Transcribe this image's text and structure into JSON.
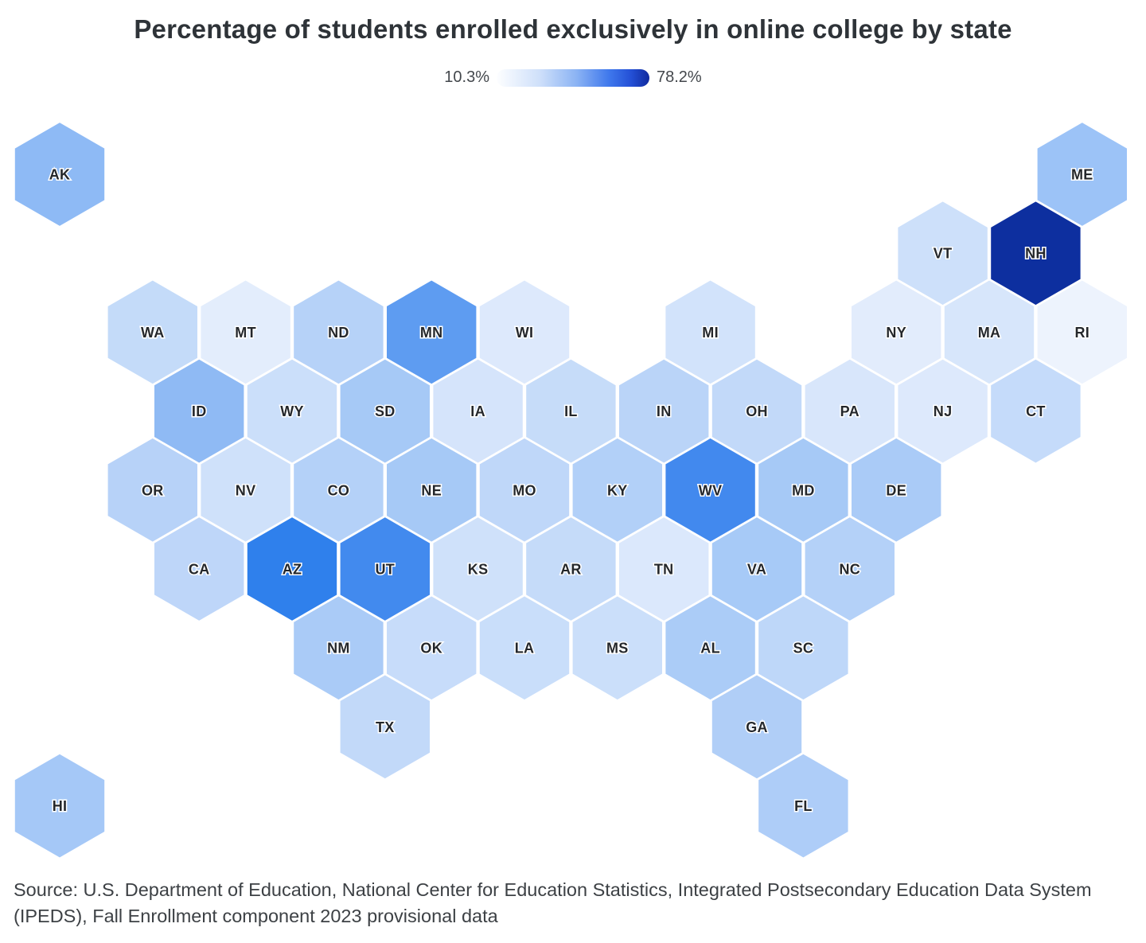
{
  "title": "Percentage of students enrolled exclusively in online college by state",
  "legend": {
    "min_label": "10.3%",
    "max_label": "78.2%"
  },
  "source": "Source: U.S. Department of Education, National Center for Education Statistics, Integrated Postsecondary Education Data System (IPEDS), Fall Enrollment component 2023 provisional data",
  "chart_data": {
    "type": "hexmap-choropleth",
    "title": "Percentage of students enrolled exclusively in online college by state",
    "legend_range": {
      "min": 10.3,
      "max": 78.2,
      "unit": "%"
    },
    "color_scale": [
      "#fdfeff",
      "#cfe0fa",
      "#8cb4f4",
      "#3e77ec",
      "#102a9e"
    ],
    "states": [
      {
        "abbr": "AK",
        "row": 0,
        "col": 0,
        "color": "#8ebaf5"
      },
      {
        "abbr": "ME",
        "row": 0,
        "col": 22,
        "color": "#9cc3f7"
      },
      {
        "abbr": "VT",
        "row": 1,
        "col": 19,
        "color": "#cde0fa"
      },
      {
        "abbr": "NH",
        "row": 1,
        "col": 21,
        "color": "#0d2f9f"
      },
      {
        "abbr": "WA",
        "row": 2,
        "col": 2,
        "color": "#c4dbf9"
      },
      {
        "abbr": "MT",
        "row": 2,
        "col": 4,
        "color": "#e3edfc"
      },
      {
        "abbr": "ND",
        "row": 2,
        "col": 6,
        "color": "#b6d2f8"
      },
      {
        "abbr": "MN",
        "row": 2,
        "col": 8,
        "color": "#5e9cf1"
      },
      {
        "abbr": "WI",
        "row": 2,
        "col": 10,
        "color": "#dde9fc"
      },
      {
        "abbr": "MI",
        "row": 2,
        "col": 14,
        "color": "#d2e3fb"
      },
      {
        "abbr": "NY",
        "row": 2,
        "col": 18,
        "color": "#e2ecfc"
      },
      {
        "abbr": "MA",
        "row": 2,
        "col": 20,
        "color": "#d7e6fb"
      },
      {
        "abbr": "RI",
        "row": 2,
        "col": 22,
        "color": "#edf3fd"
      },
      {
        "abbr": "ID",
        "row": 3,
        "col": 3,
        "color": "#8fbaf4"
      },
      {
        "abbr": "WY",
        "row": 3,
        "col": 5,
        "color": "#cbdffa"
      },
      {
        "abbr": "SD",
        "row": 3,
        "col": 7,
        "color": "#a6c9f6"
      },
      {
        "abbr": "IA",
        "row": 3,
        "col": 9,
        "color": "#d5e4fb"
      },
      {
        "abbr": "IL",
        "row": 3,
        "col": 11,
        "color": "#c6dcf9"
      },
      {
        "abbr": "IN",
        "row": 3,
        "col": 13,
        "color": "#bad4f8"
      },
      {
        "abbr": "OH",
        "row": 3,
        "col": 15,
        "color": "#c2d9f9"
      },
      {
        "abbr": "PA",
        "row": 3,
        "col": 17,
        "color": "#d8e6fb"
      },
      {
        "abbr": "NJ",
        "row": 3,
        "col": 19,
        "color": "#dde9fc"
      },
      {
        "abbr": "CT",
        "row": 3,
        "col": 21,
        "color": "#c5dbfa"
      },
      {
        "abbr": "OR",
        "row": 4,
        "col": 2,
        "color": "#b7d2f8"
      },
      {
        "abbr": "NV",
        "row": 4,
        "col": 4,
        "color": "#cfe1fa"
      },
      {
        "abbr": "CO",
        "row": 4,
        "col": 6,
        "color": "#b4d1f8"
      },
      {
        "abbr": "NE",
        "row": 4,
        "col": 8,
        "color": "#a6c9f6"
      },
      {
        "abbr": "MO",
        "row": 4,
        "col": 10,
        "color": "#bfd7f9"
      },
      {
        "abbr": "KY",
        "row": 4,
        "col": 12,
        "color": "#b2d0f8"
      },
      {
        "abbr": "WV",
        "row": 4,
        "col": 14,
        "color": "#4289ee"
      },
      {
        "abbr": "MD",
        "row": 4,
        "col": 16,
        "color": "#a6c9f6"
      },
      {
        "abbr": "DE",
        "row": 4,
        "col": 18,
        "color": "#aacbf7"
      },
      {
        "abbr": "CA",
        "row": 5,
        "col": 3,
        "color": "#bed6f9"
      },
      {
        "abbr": "AZ",
        "row": 5,
        "col": 5,
        "color": "#2f80ec"
      },
      {
        "abbr": "UT",
        "row": 5,
        "col": 7,
        "color": "#428aee"
      },
      {
        "abbr": "KS",
        "row": 5,
        "col": 9,
        "color": "#cfe1fa"
      },
      {
        "abbr": "AR",
        "row": 5,
        "col": 11,
        "color": "#c5dbf9"
      },
      {
        "abbr": "TN",
        "row": 5,
        "col": 13,
        "color": "#dbe8fc"
      },
      {
        "abbr": "VA",
        "row": 5,
        "col": 15,
        "color": "#a7caf7"
      },
      {
        "abbr": "NC",
        "row": 5,
        "col": 17,
        "color": "#b4d1f8"
      },
      {
        "abbr": "NM",
        "row": 6,
        "col": 6,
        "color": "#aacbf7"
      },
      {
        "abbr": "OK",
        "row": 6,
        "col": 8,
        "color": "#c7dcfa"
      },
      {
        "abbr": "LA",
        "row": 6,
        "col": 10,
        "color": "#c9defa"
      },
      {
        "abbr": "MS",
        "row": 6,
        "col": 12,
        "color": "#cbdffa"
      },
      {
        "abbr": "AL",
        "row": 6,
        "col": 14,
        "color": "#abccf7"
      },
      {
        "abbr": "SC",
        "row": 6,
        "col": 16,
        "color": "#bed7f9"
      },
      {
        "abbr": "TX",
        "row": 7,
        "col": 7,
        "color": "#c2d9f9"
      },
      {
        "abbr": "GA",
        "row": 7,
        "col": 15,
        "color": "#b0cef7"
      },
      {
        "abbr": "HI",
        "row": 8,
        "col": 0,
        "color": "#a5c8f7"
      },
      {
        "abbr": "FL",
        "row": 8,
        "col": 16,
        "color": "#aecdf8"
      }
    ]
  }
}
